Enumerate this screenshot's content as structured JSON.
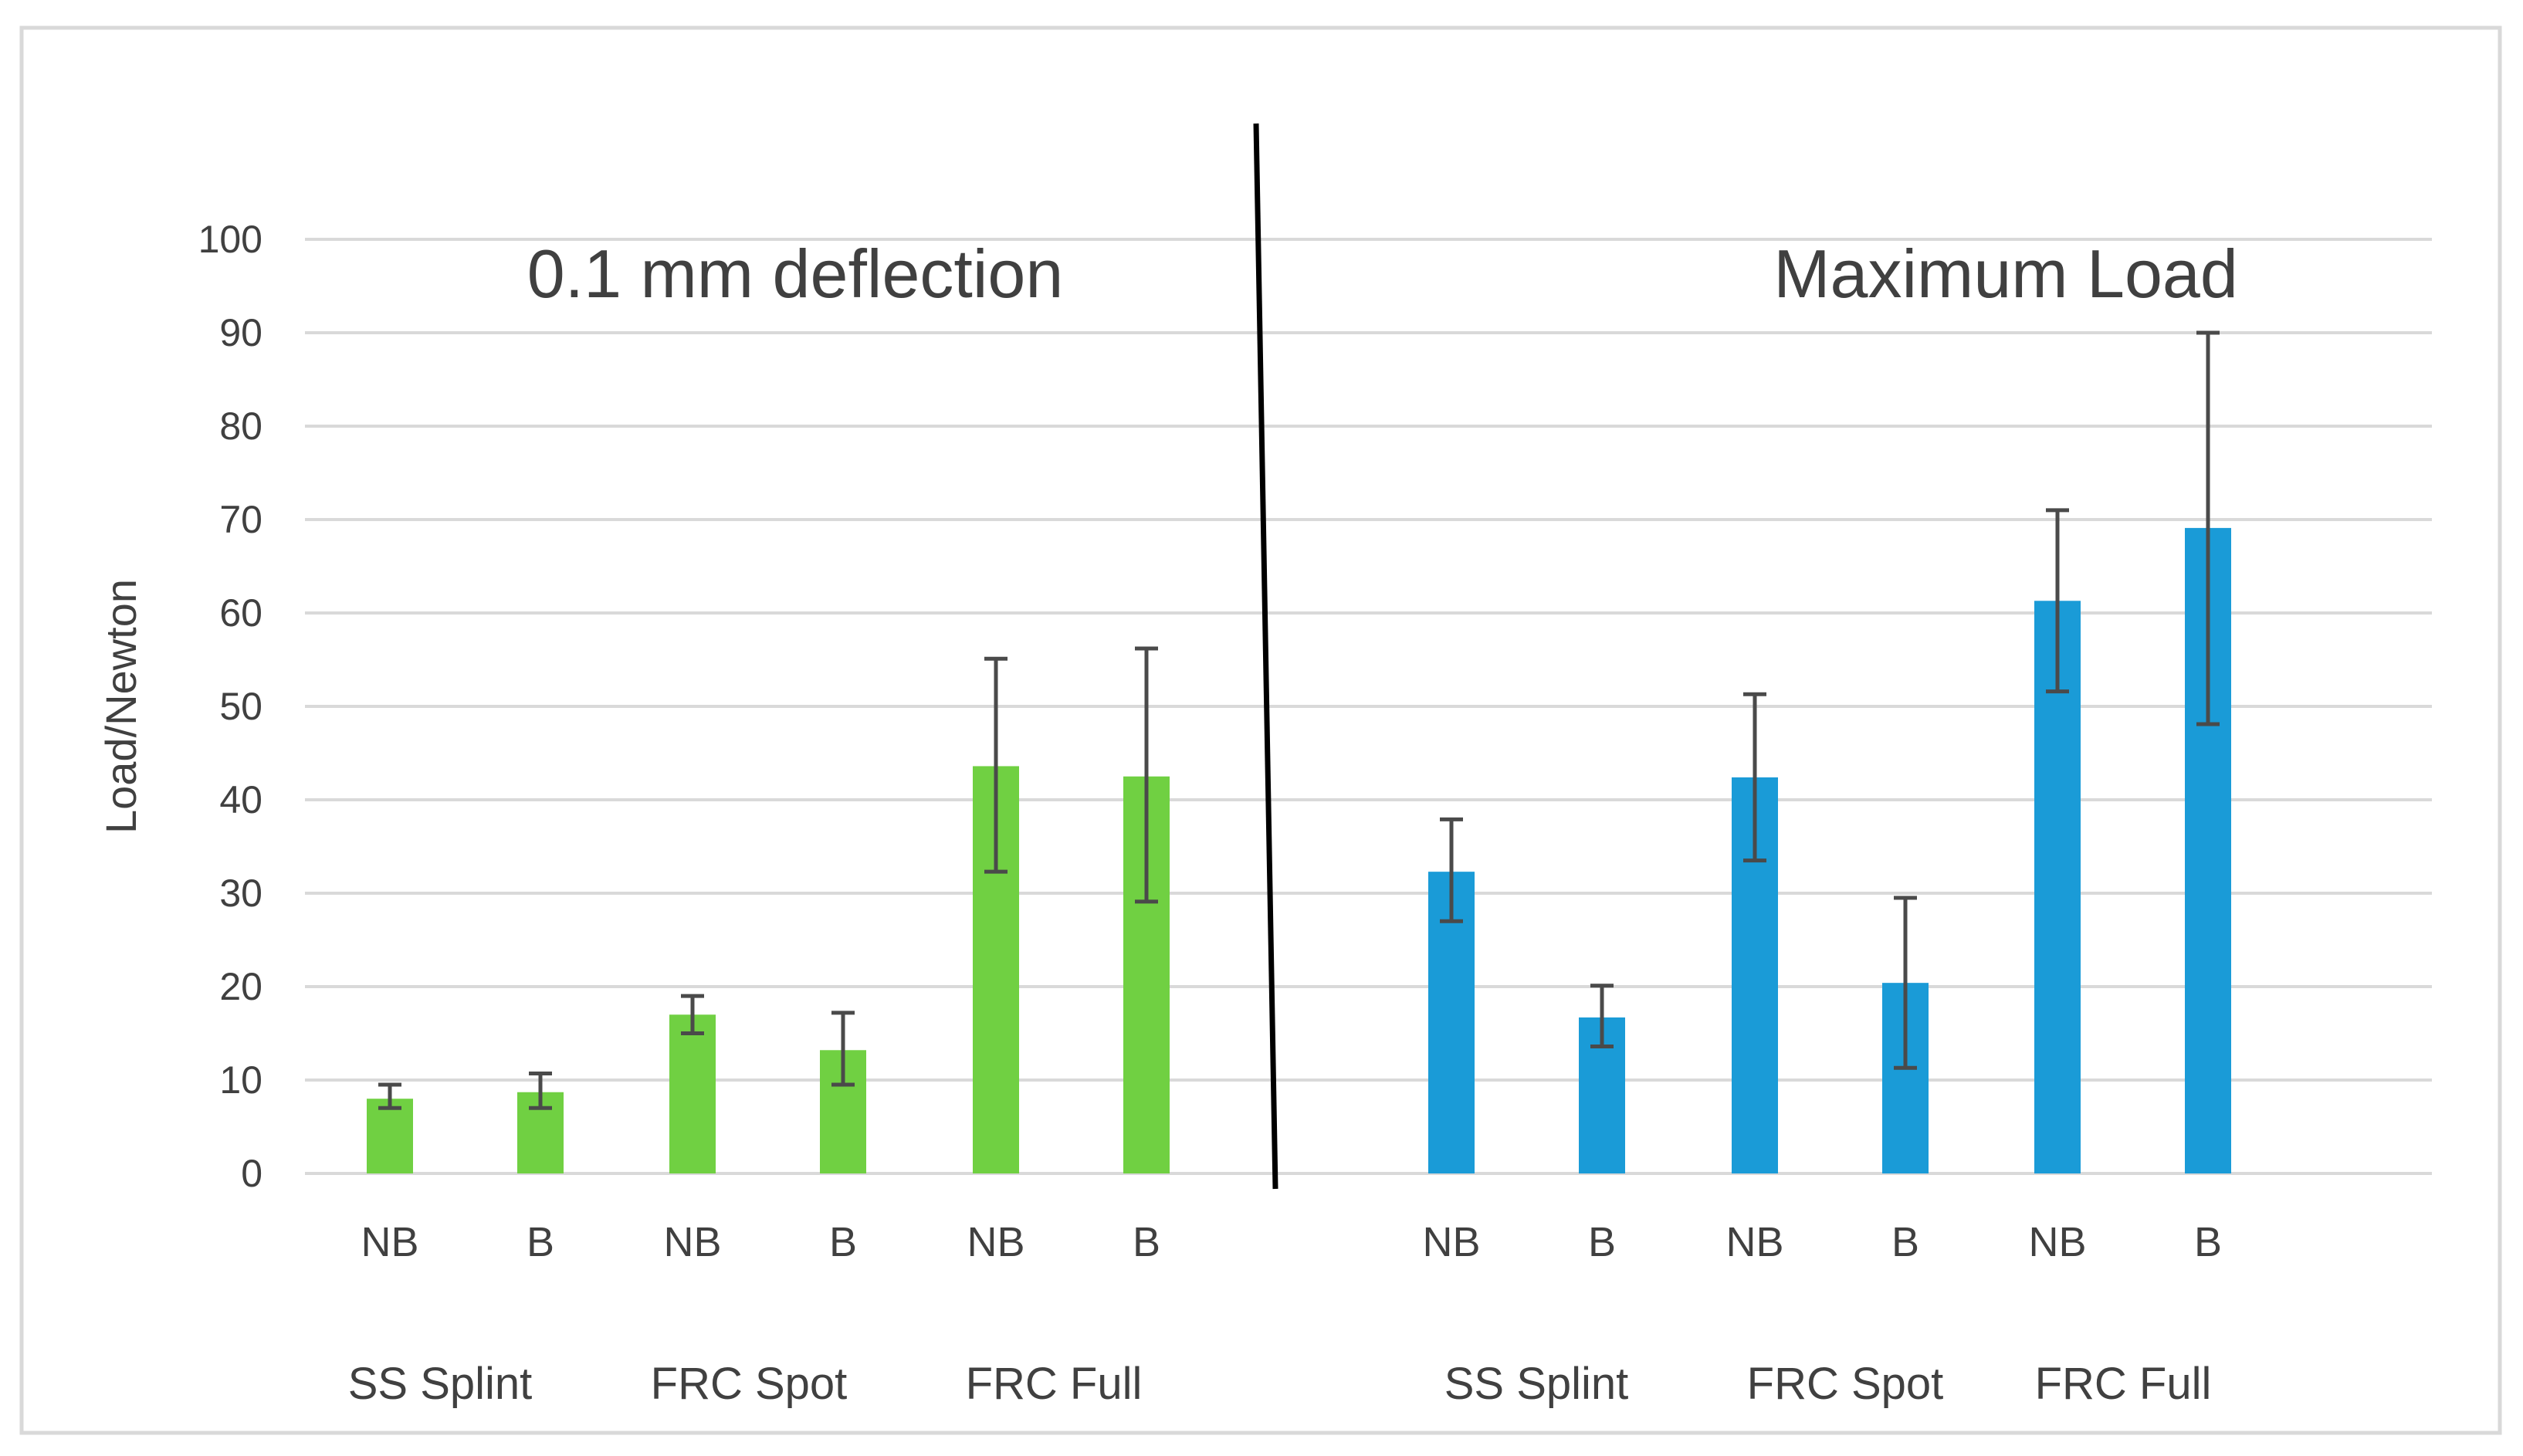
{
  "chart_data": {
    "type": "bar",
    "ylabel": "Load/Newton",
    "xlabel": "",
    "ylim": [
      0,
      100
    ],
    "yticks": [
      0,
      10,
      20,
      30,
      40,
      50,
      60,
      70,
      80,
      90,
      100
    ],
    "grid": true,
    "colors": {
      "deflection": "#70d042",
      "max_load": "#1a9bd7",
      "grid": "#d9d9d9",
      "text": "#404040",
      "divider": "#000000"
    },
    "panels": [
      {
        "title": "0.1 mm deflection",
        "series_color": "#70d042",
        "groups": [
          "SS Splint",
          "FRC Spot",
          "FRC Full"
        ],
        "bars": [
          {
            "group": "SS Splint",
            "label": "NB",
            "value": 8,
            "err_low": 7,
            "err_high": 9.5
          },
          {
            "group": "SS Splint",
            "label": "B",
            "value": 8.7,
            "err_low": 7,
            "err_high": 10.7
          },
          {
            "group": "FRC Spot",
            "label": "NB",
            "value": 17,
            "err_low": 15,
            "err_high": 19
          },
          {
            "group": "FRC Spot",
            "label": "B",
            "value": 13.2,
            "err_low": 9.5,
            "err_high": 17.2
          },
          {
            "group": "FRC Full",
            "label": "NB",
            "value": 43.6,
            "err_low": 32.3,
            "err_high": 55.1
          },
          {
            "group": "FRC Full",
            "label": "B",
            "value": 42.5,
            "err_low": 29.1,
            "err_high": 56.2
          }
        ]
      },
      {
        "title": "Maximum Load",
        "series_color": "#1a9bd7",
        "groups": [
          "SS Splint",
          "FRC Spot",
          "FRC Full"
        ],
        "bars": [
          {
            "group": "SS Splint",
            "label": "NB",
            "value": 32.3,
            "err_low": 27,
            "err_high": 37.9
          },
          {
            "group": "SS Splint",
            "label": "B",
            "value": 16.7,
            "err_low": 13.6,
            "err_high": 20.1
          },
          {
            "group": "FRC Spot",
            "label": "NB",
            "value": 42.4,
            "err_low": 33.5,
            "err_high": 51.3
          },
          {
            "group": "FRC Spot",
            "label": "B",
            "value": 20.4,
            "err_low": 11.3,
            "err_high": 29.5
          },
          {
            "group": "FRC Full",
            "label": "NB",
            "value": 61.3,
            "err_low": 51.6,
            "err_high": 71
          },
          {
            "group": "FRC Full",
            "label": "B",
            "value": 69.1,
            "err_low": 48.1,
            "err_high": 90
          }
        ]
      }
    ]
  }
}
